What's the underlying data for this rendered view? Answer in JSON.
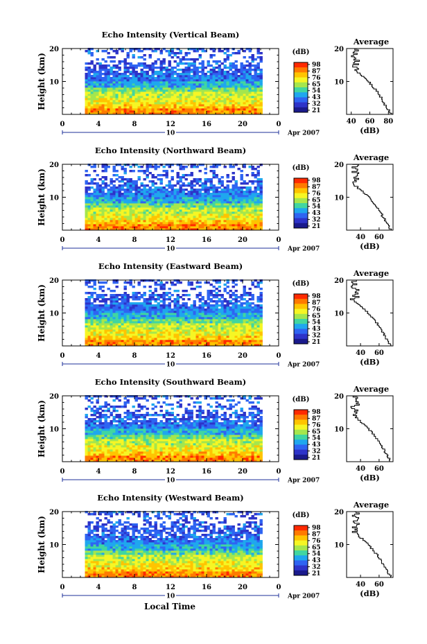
{
  "figure": {
    "x_label": "Local Time",
    "date_label": "Apr 2007",
    "day_label": "10",
    "y_label": "Height (km)",
    "cb_unit": "(dB)",
    "avg_title": "Average",
    "avg_xlabel": "(dB)"
  },
  "colorbar": {
    "ticks": [
      "98",
      "87",
      "76",
      "65",
      "54",
      "43",
      "32",
      "21"
    ],
    "colors": [
      "#ff2a00",
      "#ff7a00",
      "#ffc400",
      "#f6f624",
      "#a5e64d",
      "#41d6a0",
      "#1fa7ee",
      "#2e64f2",
      "#2d33c9",
      "#1a1a8c"
    ]
  },
  "chart_data": [
    {
      "type": "heatmap",
      "title": "Echo Intensity (Vertical Beam)",
      "x_ticks": [
        "0",
        "4",
        "8",
        "12",
        "16",
        "20",
        "0"
      ],
      "y_ticks": [
        "20",
        "10"
      ],
      "xlim": [
        0,
        24
      ],
      "ylim": [
        0,
        20
      ],
      "colorbar_ticks": [
        "98",
        "87",
        "76",
        "65",
        "54",
        "43",
        "32",
        "21"
      ],
      "data_x_range": [
        2.5,
        22
      ],
      "average_profile": {
        "x_ticks": [
          "40",
          "60",
          "80"
        ],
        "xlim": [
          35,
          85
        ],
        "ylim": [
          0,
          20
        ]
      }
    },
    {
      "type": "heatmap",
      "title": "Echo Intensity (Northward Beam)",
      "x_ticks": [
        "0",
        "4",
        "8",
        "12",
        "16",
        "20",
        "0"
      ],
      "y_ticks": [
        "20",
        "10"
      ],
      "xlim": [
        0,
        24
      ],
      "ylim": [
        0,
        20
      ],
      "colorbar_ticks": [
        "98",
        "87",
        "76",
        "65",
        "54",
        "43",
        "32",
        "21"
      ],
      "data_x_range": [
        2.5,
        22
      ],
      "average_profile": {
        "x_ticks": [
          "40",
          "60"
        ],
        "xlim": [
          25,
          75
        ],
        "ylim": [
          0,
          20
        ]
      }
    },
    {
      "type": "heatmap",
      "title": "Echo Intensity (Eastward Beam)",
      "x_ticks": [
        "0",
        "4",
        "8",
        "12",
        "16",
        "20",
        "0"
      ],
      "y_ticks": [
        "20",
        "10"
      ],
      "xlim": [
        0,
        24
      ],
      "ylim": [
        0,
        20
      ],
      "colorbar_ticks": [
        "98",
        "87",
        "76",
        "65",
        "54",
        "43",
        "32",
        "21"
      ],
      "data_x_range": [
        2.5,
        22
      ],
      "average_profile": {
        "x_ticks": [
          "40",
          "60"
        ],
        "xlim": [
          25,
          75
        ],
        "ylim": [
          0,
          20
        ]
      }
    },
    {
      "type": "heatmap",
      "title": "Echo Intensity (Southward Beam)",
      "x_ticks": [
        "0",
        "4",
        "8",
        "12",
        "16",
        "20",
        "0"
      ],
      "y_ticks": [
        "20",
        "10"
      ],
      "xlim": [
        0,
        24
      ],
      "ylim": [
        0,
        20
      ],
      "colorbar_ticks": [
        "98",
        "87",
        "76",
        "65",
        "54",
        "43",
        "32",
        "21"
      ],
      "data_x_range": [
        2.5,
        22
      ],
      "average_profile": {
        "x_ticks": [
          "40",
          "60"
        ],
        "xlim": [
          25,
          75
        ],
        "ylim": [
          0,
          20
        ]
      }
    },
    {
      "type": "heatmap",
      "title": "Echo Intensity (Westward Beam)",
      "x_ticks": [
        "0",
        "4",
        "8",
        "12",
        "16",
        "20",
        "0"
      ],
      "y_ticks": [
        "20",
        "10"
      ],
      "xlim": [
        0,
        24
      ],
      "ylim": [
        0,
        20
      ],
      "colorbar_ticks": [
        "98",
        "87",
        "76",
        "65",
        "54",
        "43",
        "32",
        "21"
      ],
      "data_x_range": [
        2.5,
        22
      ],
      "average_profile": {
        "x_ticks": [
          "40",
          "60"
        ],
        "xlim": [
          25,
          75
        ],
        "ylim": [
          0,
          20
        ]
      }
    }
  ]
}
